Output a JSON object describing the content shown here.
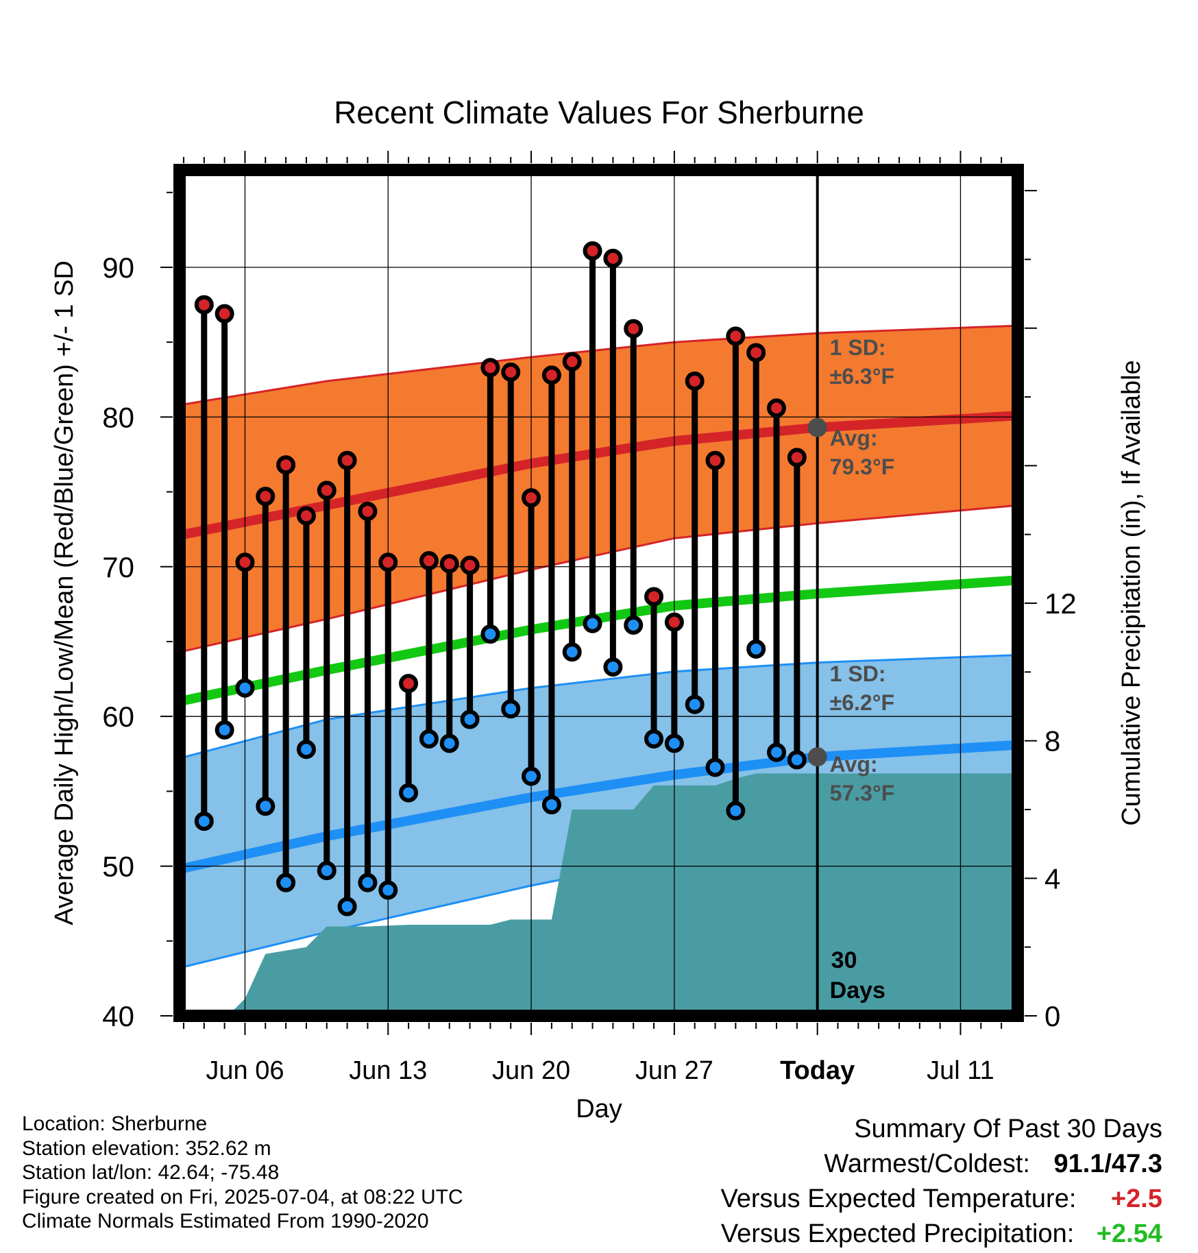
{
  "chart_data": {
    "type": "line",
    "title": "Recent Climate Values For Sherburne",
    "xlabel": "Day",
    "ylabel_left": "Average Daily High/Low/Mean (Red/Blue/Green) +/- 1 SD",
    "ylabel_right": "Cumulative Precipitation (in), If Available",
    "x_ticks": [
      {
        "day": 6,
        "label": "Jun 06"
      },
      {
        "day": 13,
        "label": "Jun 13"
      },
      {
        "day": 20,
        "label": "Jun 20"
      },
      {
        "day": 27,
        "label": "Jun 27"
      },
      {
        "day": 34,
        "label": "Today"
      },
      {
        "day": 41,
        "label": "Jul 11"
      }
    ],
    "x_unit": "day of June",
    "xlim": [
      2.8,
      43.8
    ],
    "ylim_left": [
      40,
      96.5
    ],
    "ylim_right": [
      0,
      24.6
    ],
    "y_ticks_left": [
      40,
      50,
      60,
      70,
      80,
      90
    ],
    "y_ticks_right": [
      0,
      4,
      8,
      12
    ],
    "grid": true,
    "today_day": 34,
    "days": [
      4,
      5,
      6,
      7,
      8,
      9,
      10,
      11,
      12,
      13,
      14,
      15,
      16,
      17,
      18,
      19,
      20,
      21,
      22,
      23,
      24,
      25,
      26,
      27,
      28,
      29,
      30,
      31,
      32,
      33
    ],
    "series": [
      {
        "name": "Daily High",
        "values": [
          87.5,
          86.9,
          70.3,
          74.7,
          76.8,
          73.4,
          75.1,
          77.1,
          73.7,
          70.3,
          62.2,
          70.4,
          70.2,
          70.1,
          83.3,
          83.0,
          74.6,
          82.8,
          83.7,
          91.1,
          90.6,
          85.9,
          68.0,
          66.3,
          82.4,
          77.1,
          85.4,
          84.3,
          80.6,
          77.3
        ]
      },
      {
        "name": "Daily Low",
        "values": [
          53.0,
          59.1,
          61.9,
          54.0,
          48.9,
          57.8,
          49.7,
          47.3,
          48.9,
          48.4,
          54.9,
          58.5,
          58.2,
          59.8,
          65.5,
          60.5,
          56.0,
          54.1,
          64.3,
          66.2,
          63.3,
          66.1,
          58.5,
          58.2,
          60.8,
          56.6,
          53.7,
          64.5,
          57.6,
          57.1
        ]
      }
    ],
    "normals": {
      "days": [
        2.8,
        10,
        20,
        27,
        34,
        43.8
      ],
      "high_avg": [
        72.1,
        74.1,
        76.9,
        78.4,
        79.3,
        80.1
      ],
      "high_upper": [
        80.8,
        82.4,
        84.0,
        85.0,
        85.6,
        86.1
      ],
      "high_lower": [
        64.3,
        66.5,
        69.8,
        71.9,
        72.9,
        74.1
      ],
      "mean": [
        61.0,
        63.1,
        65.8,
        67.4,
        68.2,
        69.1
      ],
      "low_avg": [
        49.8,
        52.0,
        54.6,
        56.1,
        57.3,
        58.1
      ],
      "low_upper": [
        57.2,
        59.8,
        61.9,
        63.0,
        63.6,
        64.1
      ],
      "low_lower": [
        43.2,
        45.6,
        48.7,
        50.6,
        51.6,
        52.6
      ]
    },
    "precipitation": {
      "days": [
        2.8,
        4,
        5,
        5.5,
        6.0,
        7.0,
        8,
        9,
        10,
        12,
        14,
        16,
        18,
        19,
        20,
        21,
        22,
        23,
        24,
        25,
        26,
        27,
        28,
        29,
        30,
        31,
        34,
        43.8
      ],
      "values": [
        0,
        0,
        0,
        0.2,
        0.5,
        1.8,
        1.9,
        2.0,
        2.6,
        2.6,
        2.65,
        2.65,
        2.65,
        2.8,
        2.8,
        2.8,
        6.0,
        6.0,
        6.0,
        6.0,
        6.7,
        6.7,
        6.7,
        6.7,
        6.9,
        7.05,
        7.05,
        7.05
      ]
    },
    "annotations": {
      "high_sd_label": "1 SD:",
      "high_sd_value": "±6.3°F",
      "high_avg_label": "Avg:",
      "high_avg_value": "79.3°F",
      "low_sd_label": "1 SD:",
      "low_sd_value": "±6.2°F",
      "low_avg_label": "Avg:",
      "low_avg_value": "57.3°F",
      "window_label_1": "30",
      "window_label_2": "Days"
    },
    "colors": {
      "high_band": "#f47a30",
      "high_line": "#d42428",
      "low_band": "#85c1e9",
      "low_line": "#1e8ff5",
      "mean_line": "#12c812",
      "precip": "#4a9ca3",
      "high_dot": "#d42428",
      "low_dot": "#1e8ff5",
      "annotation_text": "#4d4d4d"
    }
  },
  "info": {
    "location": "Location: Sherburne",
    "elevation": "Station elevation: 352.62 m",
    "latlon": "Station lat/lon: 42.64; -75.48",
    "created": "Figure created on Fri, 2025-07-04, at 08:22 UTC",
    "normals": "Climate Normals Estimated From 1990-2020"
  },
  "summary": {
    "title": "Summary Of Past 30 Days",
    "warmest_coldest_label": "Warmest/Coldest:",
    "warmest_coldest_value": "91.1/47.3",
    "temp_label": "Versus Expected Temperature:",
    "temp_value": "+2.5",
    "temp_color": "#d42428",
    "precip_label": "Versus Expected Precipitation:",
    "precip_value": "+2.54",
    "precip_color": "#22bb22"
  }
}
